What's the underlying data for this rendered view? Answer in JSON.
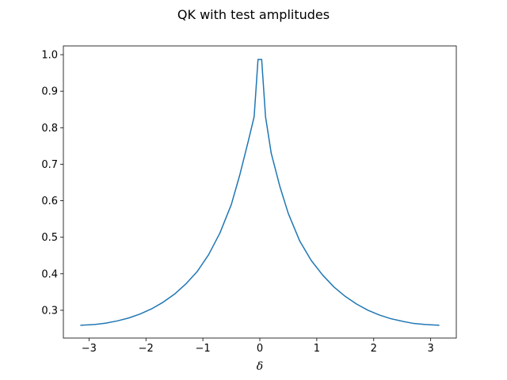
{
  "chart_data": {
    "type": "line",
    "title": "QK with test amplitudes",
    "xlabel": "δ",
    "ylabel": "",
    "xlim": [
      -3.45,
      3.45
    ],
    "ylim": [
      0.224,
      1.024
    ],
    "xticks": [
      -3,
      -2,
      -1,
      0,
      1,
      2,
      3
    ],
    "xtick_labels": [
      "−3",
      "−2",
      "−1",
      "0",
      "1",
      "2",
      "3"
    ],
    "yticks": [
      0.3,
      0.4,
      0.5,
      0.6,
      0.7,
      0.8,
      0.9,
      1.0
    ],
    "ytick_labels": [
      "0.3",
      "0.4",
      "0.5",
      "0.6",
      "0.7",
      "0.8",
      "0.9",
      "1.0"
    ],
    "grid": false,
    "legend": "none",
    "series": [
      {
        "color": "#1f77b4",
        "x": [
          -3.142,
          -2.9,
          -2.7,
          -2.5,
          -2.3,
          -2.1,
          -1.9,
          -1.7,
          -1.5,
          -1.3,
          -1.1,
          -0.9,
          -0.7,
          -0.5,
          -0.35,
          -0.2,
          -0.1,
          -0.032,
          0.032,
          0.1,
          0.2,
          0.35,
          0.5,
          0.7,
          0.9,
          1.1,
          1.3,
          1.5,
          1.7,
          1.9,
          2.1,
          2.3,
          2.5,
          2.7,
          2.9,
          3.142
        ],
        "y": [
          0.259,
          0.261,
          0.265,
          0.271,
          0.279,
          0.29,
          0.304,
          0.322,
          0.344,
          0.372,
          0.406,
          0.452,
          0.512,
          0.59,
          0.672,
          0.765,
          0.83,
          0.987,
          0.987,
          0.83,
          0.73,
          0.64,
          0.565,
          0.49,
          0.437,
          0.397,
          0.364,
          0.338,
          0.317,
          0.3,
          0.287,
          0.277,
          0.27,
          0.264,
          0.261,
          0.259
        ]
      }
    ]
  }
}
